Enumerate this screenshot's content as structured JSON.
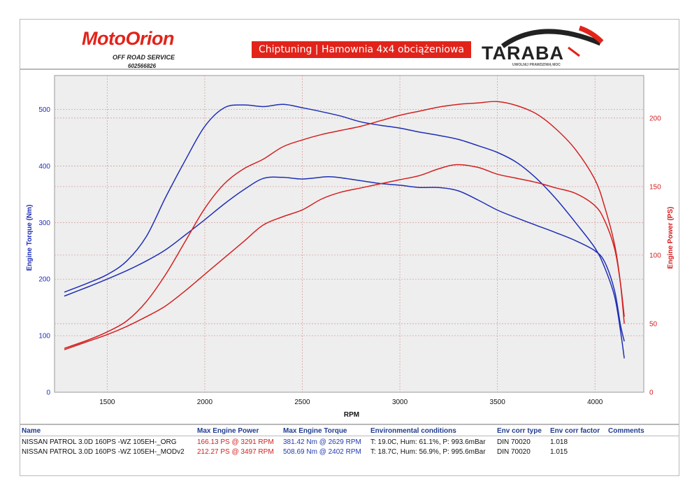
{
  "header": {
    "logo_left": "MotoOrion",
    "logo_left_sub": "OFF ROAD SERVICE",
    "logo_left_phone": "602566826",
    "banner": "Chiptuning | Hamownia 4x4 obciążeniowa",
    "logo_right": "TARABA",
    "logo_right_sub": "UWOLNIJ PRAWDZIWĄ MOC"
  },
  "colors": {
    "torque": "#1f2fb5",
    "power": "#d42020",
    "grid": "#d9a0a0",
    "plot_bg": "#eeeeee",
    "header_red": "#e2231a"
  },
  "chart_data": {
    "type": "line",
    "xlabel": "RPM",
    "ylabel_left": "Engine Torque (Nm)",
    "ylabel_right": "Engine Power (PS)",
    "xlim": [
      1230,
      4250
    ],
    "ylim_left": [
      0,
      560
    ],
    "ylim_right": [
      0,
      231
    ],
    "xticks": [
      1500,
      2000,
      2500,
      3000,
      3500,
      4000
    ],
    "yticks_left": [
      0,
      100,
      200,
      300,
      400,
      500
    ],
    "yticks_right": [
      0,
      50,
      100,
      150,
      200
    ],
    "grid": true,
    "series": [
      {
        "name": "NISSAN PATROL 3.0D 160PS -WZ 105EH-_ORG",
        "quantity": "torque",
        "axis": "left",
        "x": [
          1280,
          1400,
          1500,
          1600,
          1700,
          1800,
          1900,
          2000,
          2100,
          2200,
          2300,
          2400,
          2500,
          2629,
          2700,
          2800,
          2900,
          3000,
          3100,
          3200,
          3300,
          3400,
          3500,
          3600,
          3700,
          3800,
          3900,
          4000,
          4050,
          4100,
          4130,
          4150
        ],
        "y": [
          170,
          186,
          200,
          215,
          232,
          252,
          278,
          305,
          333,
          358,
          378,
          380,
          377,
          381,
          379,
          374,
          369,
          366,
          362,
          362,
          356,
          340,
          322,
          308,
          295,
          282,
          268,
          250,
          230,
          180,
          120,
          90
        ]
      },
      {
        "name": "NISSAN PATROL 3.0D 160PS -WZ 105EH-_MODv2",
        "quantity": "torque",
        "axis": "left",
        "x": [
          1280,
          1400,
          1500,
          1600,
          1700,
          1800,
          1900,
          2000,
          2100,
          2200,
          2300,
          2402,
          2500,
          2600,
          2700,
          2800,
          2900,
          3000,
          3100,
          3200,
          3300,
          3400,
          3500,
          3600,
          3700,
          3800,
          3900,
          4000,
          4050,
          4100,
          4130,
          4150
        ],
        "y": [
          177,
          193,
          208,
          232,
          275,
          345,
          410,
          470,
          503,
          508,
          505,
          509,
          503,
          496,
          488,
          478,
          472,
          467,
          460,
          454,
          447,
          436,
          424,
          406,
          378,
          342,
          300,
          255,
          220,
          170,
          110,
          60
        ]
      },
      {
        "name": "NISSAN PATROL 3.0D 160PS -WZ 105EH-_ORG",
        "quantity": "power",
        "axis": "right",
        "x": [
          1280,
          1400,
          1500,
          1600,
          1700,
          1800,
          1900,
          2000,
          2100,
          2200,
          2300,
          2400,
          2500,
          2600,
          2700,
          2800,
          2900,
          3000,
          3100,
          3200,
          3291,
          3400,
          3500,
          3600,
          3700,
          3800,
          3900,
          4000,
          4050,
          4100,
          4130,
          4150
        ],
        "y": [
          31,
          37,
          42,
          48,
          55,
          63,
          74,
          86,
          98,
          110,
          122,
          128,
          133,
          141,
          146,
          149,
          152,
          155,
          158,
          163,
          166,
          164,
          159,
          156,
          153,
          149,
          145,
          136,
          125,
          105,
          80,
          55
        ]
      },
      {
        "name": "NISSAN PATROL 3.0D 160PS -WZ 105EH-_MODv2",
        "quantity": "power",
        "axis": "right",
        "x": [
          1280,
          1400,
          1500,
          1600,
          1700,
          1800,
          1900,
          2000,
          2100,
          2200,
          2300,
          2400,
          2500,
          2600,
          2700,
          2800,
          2900,
          3000,
          3100,
          3200,
          3300,
          3400,
          3497,
          3600,
          3700,
          3800,
          3900,
          4000,
          4050,
          4100,
          4130,
          4150
        ],
        "y": [
          32,
          38,
          44,
          52,
          66,
          86,
          110,
          134,
          152,
          163,
          170,
          179,
          184,
          188,
          191,
          194,
          198,
          202,
          205,
          208,
          210,
          211,
          212,
          209,
          203,
          192,
          177,
          155,
          135,
          108,
          80,
          50
        ]
      }
    ]
  },
  "table": {
    "headers": [
      "Name",
      "Max Engine Power",
      "Max Engine Torque",
      "Environmental conditions",
      "Env corr type",
      "Env corr factor",
      "Comments"
    ],
    "rows": [
      [
        "NISSAN PATROL 3.0D 160PS -WZ 105EH-_ORG",
        "166.13 PS @ 3291 RPM",
        "381.42 Nm @ 2629 RPM",
        "T: 19.0C, Hum: 61.1%, P: 993.6mBar",
        "DIN 70020",
        "1.018",
        ""
      ],
      [
        "NISSAN PATROL 3.0D 160PS -WZ 105EH-_MODv2",
        "212.27 PS @ 3497 RPM",
        "508.69 Nm @ 2402 RPM",
        "T: 18.7C, Hum: 56.9%, P: 995.6mBar",
        "DIN 70020",
        "1.015",
        ""
      ]
    ]
  }
}
